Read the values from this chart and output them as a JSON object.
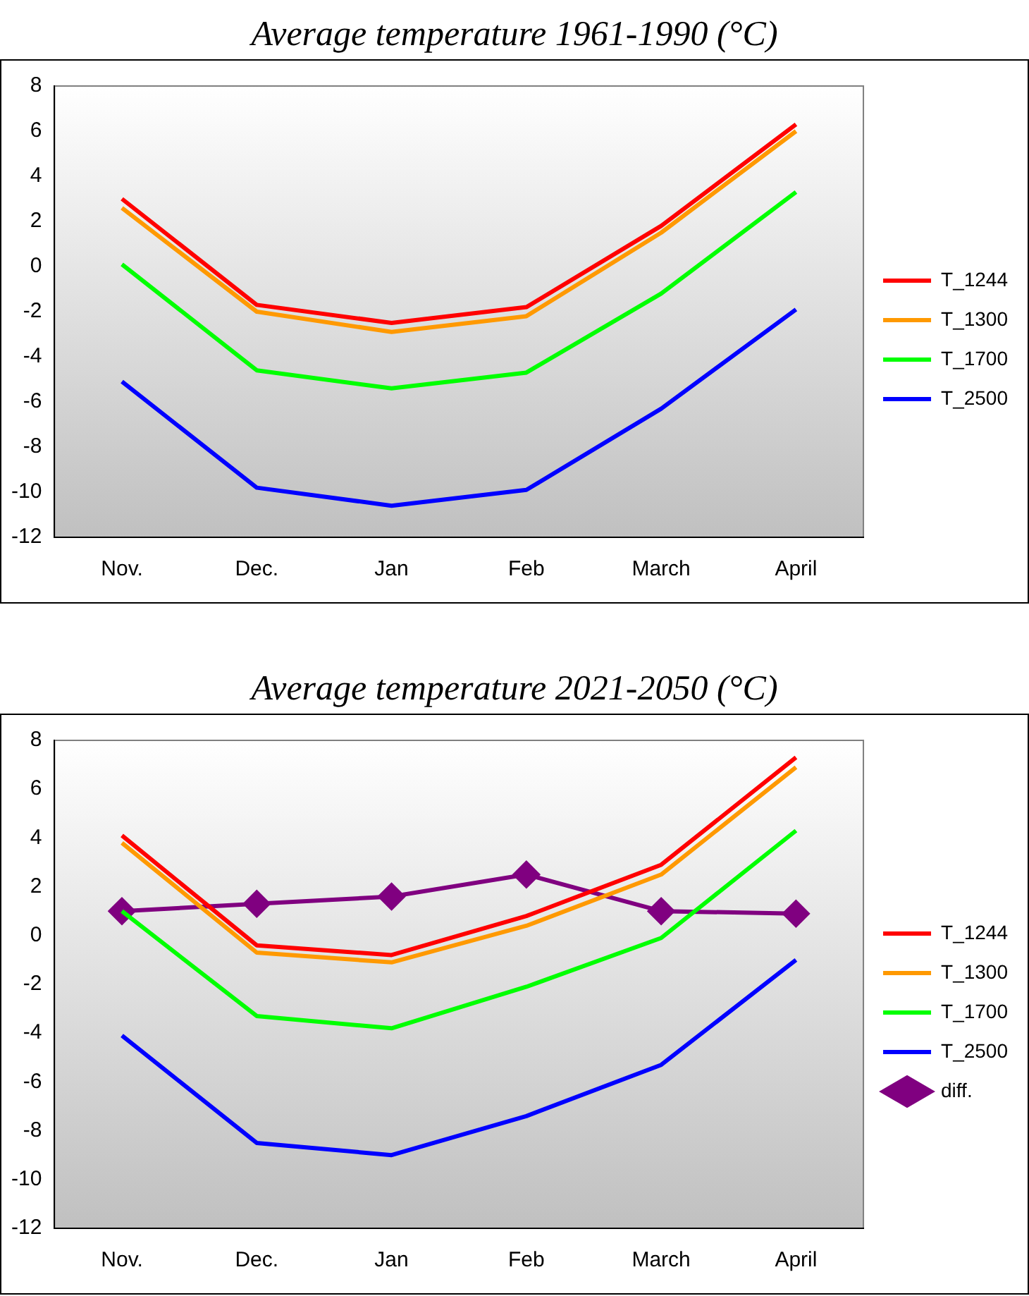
{
  "chart_data": [
    {
      "type": "line",
      "title": "Average temperature 1961-1990 (°C)",
      "categories": [
        "Nov.",
        "Dec.",
        "Jan",
        "Feb",
        "March",
        "April"
      ],
      "ylim": [
        -12,
        8
      ],
      "yticks": [
        -12,
        -10,
        -8,
        -6,
        -4,
        -2,
        0,
        2,
        4,
        6,
        8
      ],
      "grid": false,
      "legend": "right",
      "marker": "none",
      "series": [
        {
          "name": "T_1244",
          "color": "#ff0000",
          "values": [
            3.0,
            -1.7,
            -2.5,
            -1.8,
            1.8,
            6.3
          ]
        },
        {
          "name": "T_1300",
          "color": "#ff9900",
          "values": [
            2.6,
            -2.0,
            -2.9,
            -2.2,
            1.5,
            6.0
          ]
        },
        {
          "name": "T_1700",
          "color": "#00ff00",
          "values": [
            0.1,
            -4.6,
            -5.4,
            -4.7,
            -1.2,
            3.3
          ]
        },
        {
          "name": "T_2500",
          "color": "#0000ff",
          "values": [
            -5.1,
            -9.8,
            -10.6,
            -9.9,
            -6.3,
            -1.9
          ]
        }
      ]
    },
    {
      "type": "line",
      "title": "Average temperature 2021-2050 (°C)",
      "categories": [
        "Nov.",
        "Dec.",
        "Jan",
        "Feb",
        "March",
        "April"
      ],
      "ylim": [
        -12,
        8
      ],
      "yticks": [
        -12,
        -10,
        -8,
        -6,
        -4,
        -2,
        0,
        2,
        4,
        6,
        8
      ],
      "grid": false,
      "legend": "right",
      "marker": "none",
      "series": [
        {
          "name": "T_1244",
          "color": "#ff0000",
          "values": [
            4.1,
            -0.4,
            -0.8,
            0.8,
            2.9,
            7.3
          ]
        },
        {
          "name": "T_1300",
          "color": "#ff9900",
          "values": [
            3.8,
            -0.7,
            -1.1,
            0.4,
            2.5,
            6.9
          ]
        },
        {
          "name": "T_1700",
          "color": "#00ff00",
          "values": [
            1.0,
            -3.3,
            -3.8,
            -2.1,
            -0.1,
            4.3
          ]
        },
        {
          "name": "T_2500",
          "color": "#0000ff",
          "values": [
            -4.1,
            -8.5,
            -9.0,
            -7.4,
            -5.3,
            -1.0
          ]
        },
        {
          "name": "diff.",
          "color": "#800080",
          "marker": "diamond",
          "values": [
            1.0,
            1.3,
            1.6,
            2.5,
            1.0,
            0.9
          ]
        }
      ]
    }
  ]
}
